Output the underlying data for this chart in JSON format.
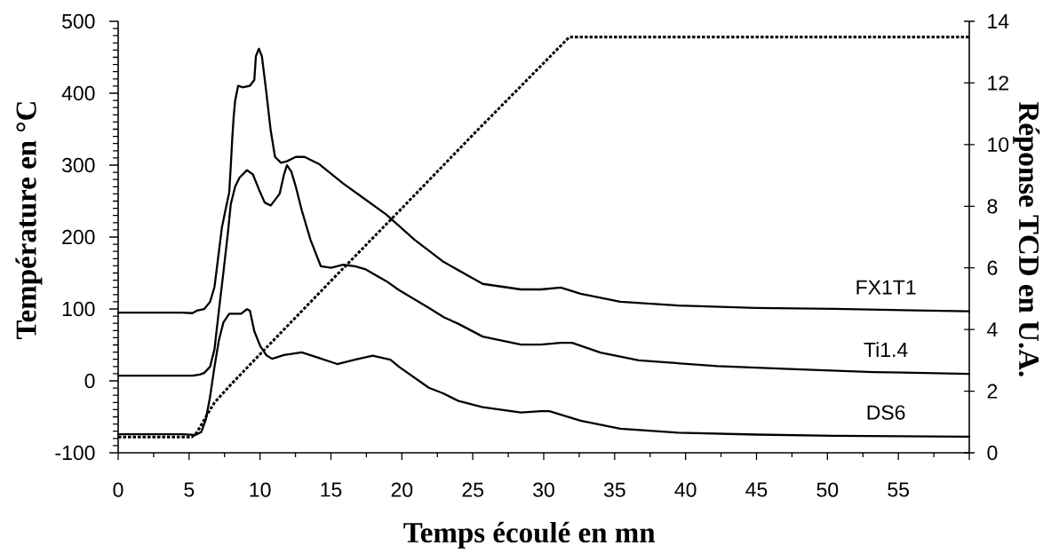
{
  "chart_data": {
    "type": "line",
    "xlabel": "Temps écoulé en mn",
    "ylabel": "Température en °C",
    "y2label": "Réponse TCD en U.A.",
    "xlim": [
      0,
      60
    ],
    "xticks": [
      0,
      5,
      10,
      15,
      20,
      25,
      30,
      35,
      40,
      45,
      50,
      55,
      {
        "value": 60,
        "label": null
      }
    ],
    "ylim": [
      -100,
      500
    ],
    "yticks": [
      -100,
      0,
      100,
      200,
      300,
      400,
      500
    ],
    "y2lim": [
      0,
      14
    ],
    "y2ticks": [
      0,
      2,
      4,
      6,
      8,
      10,
      12,
      14
    ],
    "series": [
      {
        "color": "#000000",
        "axis": "y",
        "line_style": "dashed",
        "x": [
          0,
          5.2,
          5.5,
          5.9,
          6.3,
          6.8,
          8,
          10,
          15,
          20,
          25,
          31.8,
          60
        ],
        "values": [
          -78,
          -78,
          -73,
          -60,
          -46,
          -30,
          -4,
          37,
          139,
          240,
          342,
          478,
          478
        ]
      },
      {
        "name": "FX1T1",
        "color": "#000000",
        "axis": "y2",
        "line_style": "solid",
        "x": [
          0,
          4.5,
          5.23,
          5.54,
          6.06,
          6.48,
          6.79,
          7.0,
          7.31,
          7.52,
          7.83,
          7.94,
          8.04,
          8.15,
          8.25,
          8.46,
          8.77,
          9.29,
          9.6,
          9.71,
          9.92,
          10.13,
          10.44,
          10.75,
          11.06,
          11.48,
          11.9,
          12.52,
          13.14,
          14.19,
          15.86,
          17,
          18.9,
          20.9,
          22.95,
          25.7,
          28.4,
          29.8,
          31.2,
          32.6,
          35.4,
          39.5,
          45,
          50.5,
          60
        ],
        "values": [
          4.55,
          4.55,
          4.53,
          4.61,
          4.66,
          4.9,
          5.38,
          6.15,
          7.3,
          7.78,
          8.45,
          9.31,
          10.18,
          10.95,
          11.43,
          11.91,
          11.86,
          11.91,
          12.1,
          12.87,
          13.11,
          12.87,
          11.72,
          10.47,
          9.6,
          9.41,
          9.46,
          9.6,
          9.6,
          9.36,
          8.74,
          8.36,
          7.73,
          6.91,
          6.19,
          5.48,
          5.3,
          5.3,
          5.36,
          5.16,
          4.9,
          4.78,
          4.7,
          4.67,
          4.59
        ]
      },
      {
        "name": "Ti1.4",
        "color": "#000000",
        "axis": "y2",
        "line_style": "solid",
        "x": [
          0,
          4.5,
          5.25,
          5.75,
          6.06,
          6.48,
          6.79,
          7.1,
          7.42,
          7.73,
          7.94,
          8.25,
          8.56,
          9.08,
          9.5,
          9.92,
          10.33,
          10.75,
          11.38,
          11.69,
          11.9,
          12.21,
          12.52,
          12.94,
          13.56,
          14.29,
          15.02,
          15.86,
          16.69,
          17.4,
          18.9,
          19.8,
          21.9,
          22.95,
          24,
          25.7,
          28.4,
          29.8,
          31.2,
          32,
          34,
          36.7,
          42.25,
          47.75,
          53.25,
          60
        ],
        "values": [
          2.5,
          2.5,
          2.5,
          2.54,
          2.59,
          2.79,
          3.36,
          4.61,
          5.86,
          7.11,
          8.07,
          8.64,
          8.93,
          9.17,
          9.03,
          8.55,
          8.12,
          8.02,
          8.4,
          9.03,
          9.33,
          9.12,
          8.64,
          7.87,
          6.91,
          6.05,
          6.0,
          6.1,
          6.05,
          5.96,
          5.57,
          5.28,
          4.7,
          4.4,
          4.18,
          3.77,
          3.51,
          3.51,
          3.57,
          3.57,
          3.25,
          3.0,
          2.81,
          2.71,
          2.62,
          2.56
        ]
      },
      {
        "name": "DS6",
        "color": "#000000",
        "axis": "y2",
        "line_style": "solid",
        "x": [
          0,
          4.5,
          5.44,
          5.85,
          6.17,
          6.48,
          6.79,
          7.1,
          7.42,
          7.83,
          8.67,
          9.08,
          9.29,
          9.6,
          10.02,
          10.44,
          10.85,
          11.69,
          12.94,
          14.19,
          15.44,
          16.69,
          17.94,
          19.19,
          19.8,
          21.9,
          22.9,
          24,
          25.7,
          28.4,
          29.8,
          30.4,
          32.6,
          35.4,
          39.5,
          45,
          50.5,
          60
        ],
        "values": [
          0.6,
          0.6,
          0.58,
          0.67,
          1.06,
          1.82,
          2.79,
          3.65,
          4.23,
          4.51,
          4.51,
          4.66,
          4.61,
          3.94,
          3.46,
          3.17,
          3.05,
          3.17,
          3.26,
          3.07,
          2.88,
          3.02,
          3.15,
          3.02,
          2.79,
          2.11,
          1.93,
          1.68,
          1.48,
          1.31,
          1.35,
          1.35,
          1.04,
          0.78,
          0.65,
          0.59,
          0.55,
          0.52
        ]
      }
    ]
  }
}
